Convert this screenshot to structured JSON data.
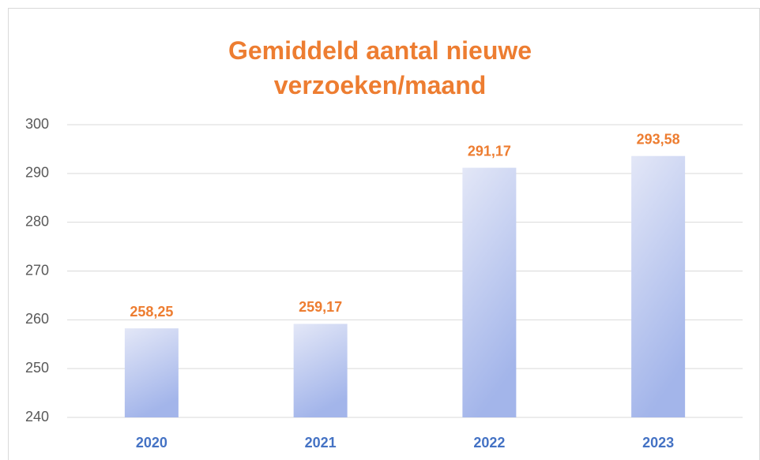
{
  "chart_data": {
    "type": "bar",
    "title": "Gemiddeld aantal nieuwe verzoeken/maand",
    "categories": [
      "2020",
      "2021",
      "2022",
      "2023"
    ],
    "values": [
      258.25,
      259.17,
      291.17,
      293.58
    ],
    "value_labels": [
      "258,25",
      "259,17",
      "291,17",
      "293,58"
    ],
    "color": "#a3b5ea",
    "ylim": [
      240,
      300
    ],
    "yticks": [
      240,
      250,
      260,
      270,
      280,
      290,
      300
    ],
    "grid": true
  }
}
